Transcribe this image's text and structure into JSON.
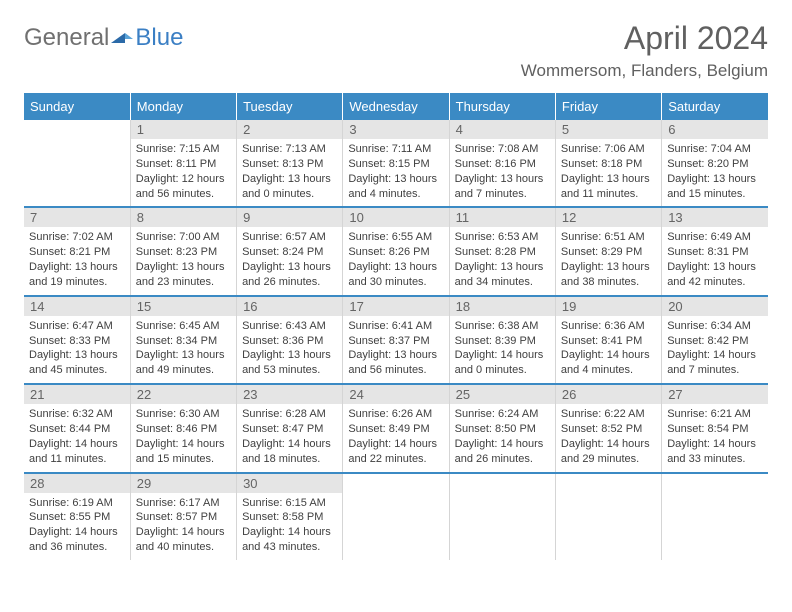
{
  "logo": {
    "text1": "General",
    "text2": "Blue"
  },
  "header": {
    "month_title": "April 2024",
    "location": "Wommersom, Flanders, Belgium"
  },
  "colors": {
    "header_bg": "#3b8ac4",
    "header_fg": "#ffffff",
    "daynum_bg": "#e5e5e5",
    "week_divider": "#3b8ac4"
  },
  "day_headers": [
    "Sunday",
    "Monday",
    "Tuesday",
    "Wednesday",
    "Thursday",
    "Friday",
    "Saturday"
  ],
  "weeks": [
    [
      null,
      {
        "n": "1",
        "sr": "Sunrise: 7:15 AM",
        "ss": "Sunset: 8:11 PM",
        "d1": "Daylight: 12 hours",
        "d2": "and 56 minutes."
      },
      {
        "n": "2",
        "sr": "Sunrise: 7:13 AM",
        "ss": "Sunset: 8:13 PM",
        "d1": "Daylight: 13 hours",
        "d2": "and 0 minutes."
      },
      {
        "n": "3",
        "sr": "Sunrise: 7:11 AM",
        "ss": "Sunset: 8:15 PM",
        "d1": "Daylight: 13 hours",
        "d2": "and 4 minutes."
      },
      {
        "n": "4",
        "sr": "Sunrise: 7:08 AM",
        "ss": "Sunset: 8:16 PM",
        "d1": "Daylight: 13 hours",
        "d2": "and 7 minutes."
      },
      {
        "n": "5",
        "sr": "Sunrise: 7:06 AM",
        "ss": "Sunset: 8:18 PM",
        "d1": "Daylight: 13 hours",
        "d2": "and 11 minutes."
      },
      {
        "n": "6",
        "sr": "Sunrise: 7:04 AM",
        "ss": "Sunset: 8:20 PM",
        "d1": "Daylight: 13 hours",
        "d2": "and 15 minutes."
      }
    ],
    [
      {
        "n": "7",
        "sr": "Sunrise: 7:02 AM",
        "ss": "Sunset: 8:21 PM",
        "d1": "Daylight: 13 hours",
        "d2": "and 19 minutes."
      },
      {
        "n": "8",
        "sr": "Sunrise: 7:00 AM",
        "ss": "Sunset: 8:23 PM",
        "d1": "Daylight: 13 hours",
        "d2": "and 23 minutes."
      },
      {
        "n": "9",
        "sr": "Sunrise: 6:57 AM",
        "ss": "Sunset: 8:24 PM",
        "d1": "Daylight: 13 hours",
        "d2": "and 26 minutes."
      },
      {
        "n": "10",
        "sr": "Sunrise: 6:55 AM",
        "ss": "Sunset: 8:26 PM",
        "d1": "Daylight: 13 hours",
        "d2": "and 30 minutes."
      },
      {
        "n": "11",
        "sr": "Sunrise: 6:53 AM",
        "ss": "Sunset: 8:28 PM",
        "d1": "Daylight: 13 hours",
        "d2": "and 34 minutes."
      },
      {
        "n": "12",
        "sr": "Sunrise: 6:51 AM",
        "ss": "Sunset: 8:29 PM",
        "d1": "Daylight: 13 hours",
        "d2": "and 38 minutes."
      },
      {
        "n": "13",
        "sr": "Sunrise: 6:49 AM",
        "ss": "Sunset: 8:31 PM",
        "d1": "Daylight: 13 hours",
        "d2": "and 42 minutes."
      }
    ],
    [
      {
        "n": "14",
        "sr": "Sunrise: 6:47 AM",
        "ss": "Sunset: 8:33 PM",
        "d1": "Daylight: 13 hours",
        "d2": "and 45 minutes."
      },
      {
        "n": "15",
        "sr": "Sunrise: 6:45 AM",
        "ss": "Sunset: 8:34 PM",
        "d1": "Daylight: 13 hours",
        "d2": "and 49 minutes."
      },
      {
        "n": "16",
        "sr": "Sunrise: 6:43 AM",
        "ss": "Sunset: 8:36 PM",
        "d1": "Daylight: 13 hours",
        "d2": "and 53 minutes."
      },
      {
        "n": "17",
        "sr": "Sunrise: 6:41 AM",
        "ss": "Sunset: 8:37 PM",
        "d1": "Daylight: 13 hours",
        "d2": "and 56 minutes."
      },
      {
        "n": "18",
        "sr": "Sunrise: 6:38 AM",
        "ss": "Sunset: 8:39 PM",
        "d1": "Daylight: 14 hours",
        "d2": "and 0 minutes."
      },
      {
        "n": "19",
        "sr": "Sunrise: 6:36 AM",
        "ss": "Sunset: 8:41 PM",
        "d1": "Daylight: 14 hours",
        "d2": "and 4 minutes."
      },
      {
        "n": "20",
        "sr": "Sunrise: 6:34 AM",
        "ss": "Sunset: 8:42 PM",
        "d1": "Daylight: 14 hours",
        "d2": "and 7 minutes."
      }
    ],
    [
      {
        "n": "21",
        "sr": "Sunrise: 6:32 AM",
        "ss": "Sunset: 8:44 PM",
        "d1": "Daylight: 14 hours",
        "d2": "and 11 minutes."
      },
      {
        "n": "22",
        "sr": "Sunrise: 6:30 AM",
        "ss": "Sunset: 8:46 PM",
        "d1": "Daylight: 14 hours",
        "d2": "and 15 minutes."
      },
      {
        "n": "23",
        "sr": "Sunrise: 6:28 AM",
        "ss": "Sunset: 8:47 PM",
        "d1": "Daylight: 14 hours",
        "d2": "and 18 minutes."
      },
      {
        "n": "24",
        "sr": "Sunrise: 6:26 AM",
        "ss": "Sunset: 8:49 PM",
        "d1": "Daylight: 14 hours",
        "d2": "and 22 minutes."
      },
      {
        "n": "25",
        "sr": "Sunrise: 6:24 AM",
        "ss": "Sunset: 8:50 PM",
        "d1": "Daylight: 14 hours",
        "d2": "and 26 minutes."
      },
      {
        "n": "26",
        "sr": "Sunrise: 6:22 AM",
        "ss": "Sunset: 8:52 PM",
        "d1": "Daylight: 14 hours",
        "d2": "and 29 minutes."
      },
      {
        "n": "27",
        "sr": "Sunrise: 6:21 AM",
        "ss": "Sunset: 8:54 PM",
        "d1": "Daylight: 14 hours",
        "d2": "and 33 minutes."
      }
    ],
    [
      {
        "n": "28",
        "sr": "Sunrise: 6:19 AM",
        "ss": "Sunset: 8:55 PM",
        "d1": "Daylight: 14 hours",
        "d2": "and 36 minutes."
      },
      {
        "n": "29",
        "sr": "Sunrise: 6:17 AM",
        "ss": "Sunset: 8:57 PM",
        "d1": "Daylight: 14 hours",
        "d2": "and 40 minutes."
      },
      {
        "n": "30",
        "sr": "Sunrise: 6:15 AM",
        "ss": "Sunset: 8:58 PM",
        "d1": "Daylight: 14 hours",
        "d2": "and 43 minutes."
      },
      null,
      null,
      null,
      null
    ]
  ]
}
